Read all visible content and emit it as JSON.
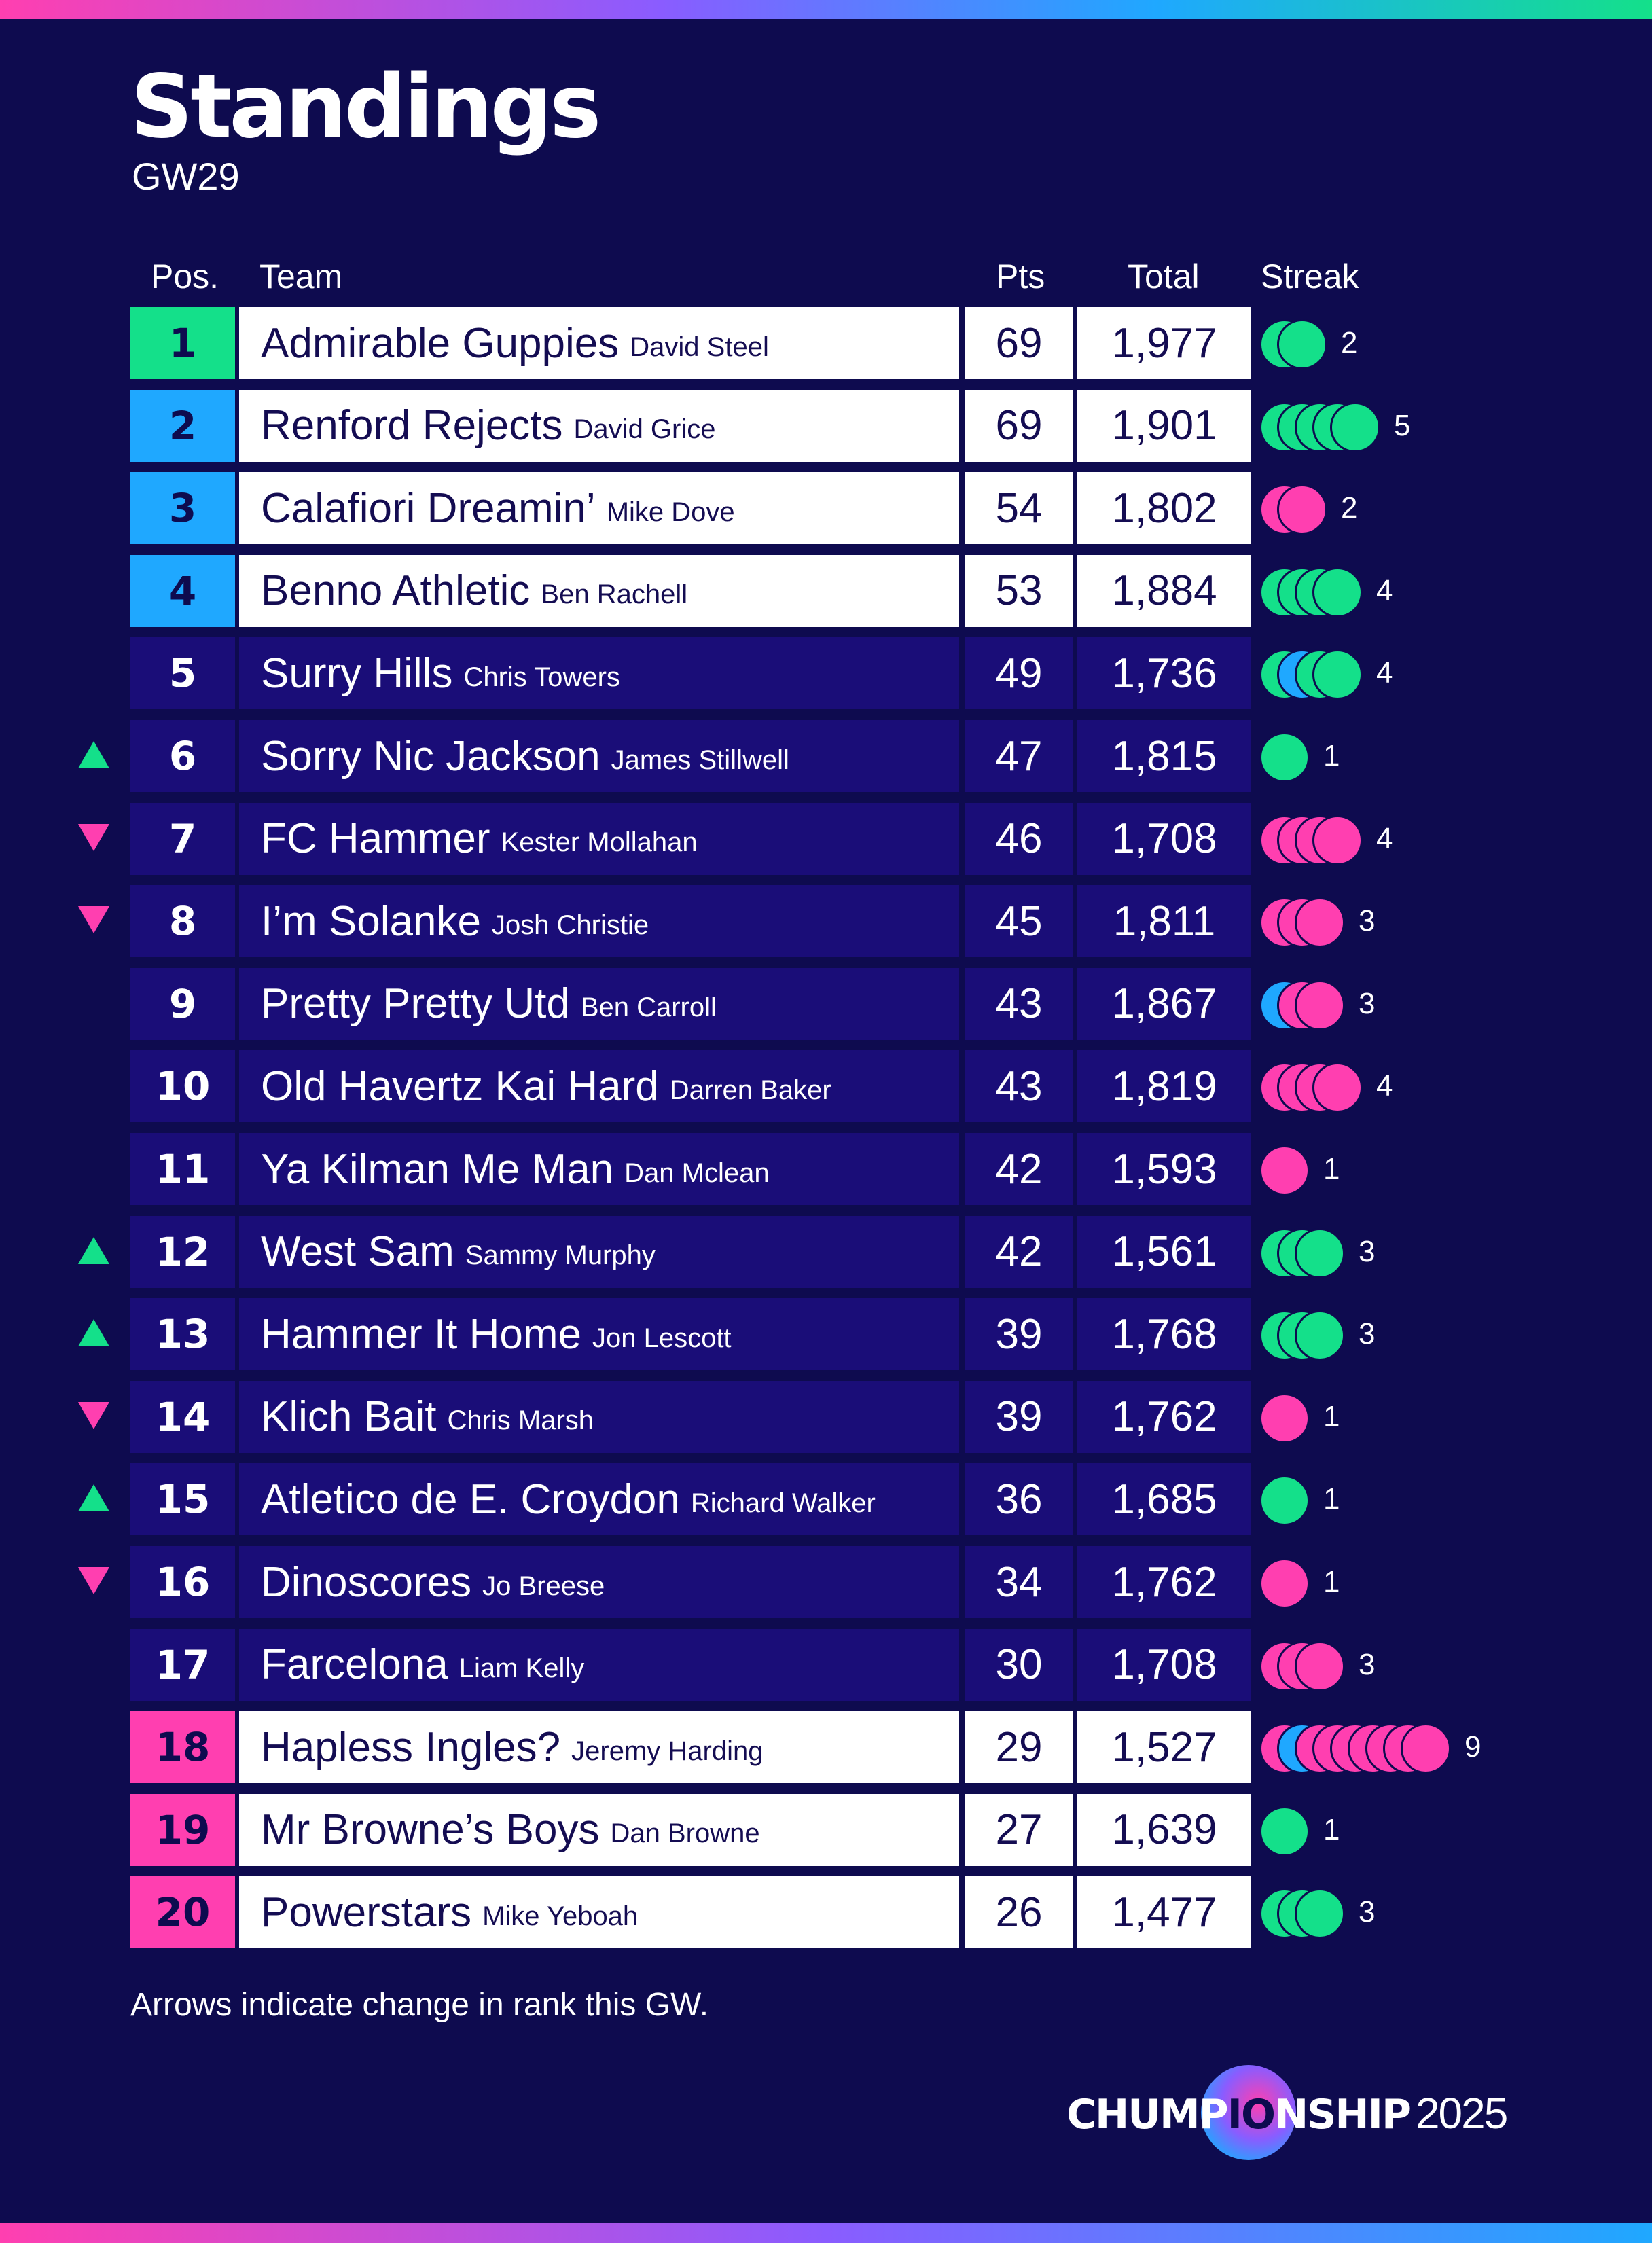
{
  "title": "Standings",
  "subtitle": "GW29",
  "headers": {
    "pos": "Pos.",
    "team": "Team",
    "pts": "Pts",
    "total": "Total",
    "streak": "Streak"
  },
  "colors": {
    "background": "#0e0b4f",
    "row_dark": "#1a0d78",
    "champion": "#14e08a",
    "europe": "#1fa8ff",
    "relegation": "#ff3fb0",
    "win": "#14e08a",
    "loss": "#ff3fb0",
    "draw": "#1fa8ff"
  },
  "rows": [
    {
      "pos": "1",
      "team": "Admirable Guppies",
      "manager": "David Steel",
      "pts": "69",
      "total": "1,977",
      "zone": "champion",
      "arrow": "",
      "streak": [
        "w",
        "w"
      ],
      "streak_count": "2"
    },
    {
      "pos": "2",
      "team": "Renford Rejects",
      "manager": "David Grice",
      "pts": "69",
      "total": "1,901",
      "zone": "europe",
      "arrow": "",
      "streak": [
        "w",
        "w",
        "w",
        "w",
        "w"
      ],
      "streak_count": "5"
    },
    {
      "pos": "3",
      "team": "Calafiori Dreamin’",
      "manager": "Mike Dove",
      "pts": "54",
      "total": "1,802",
      "zone": "europe",
      "arrow": "",
      "streak": [
        "l",
        "l"
      ],
      "streak_count": "2"
    },
    {
      "pos": "4",
      "team": "Benno Athletic",
      "manager": "Ben Rachell",
      "pts": "53",
      "total": "1,884",
      "zone": "europe",
      "arrow": "",
      "streak": [
        "w",
        "w",
        "w",
        "w"
      ],
      "streak_count": "4"
    },
    {
      "pos": "5",
      "team": "Surry Hills",
      "manager": "Chris Towers",
      "pts": "49",
      "total": "1,736",
      "zone": "",
      "arrow": "",
      "streak": [
        "w",
        "d",
        "w",
        "w"
      ],
      "streak_count": "4"
    },
    {
      "pos": "6",
      "team": "Sorry Nic Jackson",
      "manager": "James Stillwell",
      "pts": "47",
      "total": "1,815",
      "zone": "",
      "arrow": "up",
      "streak": [
        "w"
      ],
      "streak_count": "1"
    },
    {
      "pos": "7",
      "team": "FC Hammer",
      "manager": "Kester Mollahan",
      "pts": "46",
      "total": "1,708",
      "zone": "",
      "arrow": "down",
      "streak": [
        "l",
        "l",
        "l",
        "l"
      ],
      "streak_count": "4"
    },
    {
      "pos": "8",
      "team": "I’m Solanke",
      "manager": "Josh Christie",
      "pts": "45",
      "total": "1,811",
      "zone": "",
      "arrow": "down",
      "streak": [
        "l",
        "l",
        "l"
      ],
      "streak_count": "3"
    },
    {
      "pos": "9",
      "team": "Pretty Pretty Utd",
      "manager": "Ben Carroll",
      "pts": "43",
      "total": "1,867",
      "zone": "",
      "arrow": "",
      "streak": [
        "d",
        "l",
        "l"
      ],
      "streak_count": "3"
    },
    {
      "pos": "10",
      "team": "Old Havertz Kai Hard",
      "manager": "Darren Baker",
      "pts": "43",
      "total": "1,819",
      "zone": "",
      "arrow": "",
      "streak": [
        "l",
        "l",
        "l",
        "l"
      ],
      "streak_count": "4"
    },
    {
      "pos": "11",
      "team": "Ya Kilman Me Man",
      "manager": "Dan Mclean",
      "pts": "42",
      "total": "1,593",
      "zone": "",
      "arrow": "",
      "streak": [
        "l"
      ],
      "streak_count": "1"
    },
    {
      "pos": "12",
      "team": "West Sam",
      "manager": "Sammy Murphy",
      "pts": "42",
      "total": "1,561",
      "zone": "",
      "arrow": "up",
      "streak": [
        "w",
        "w",
        "w"
      ],
      "streak_count": "3"
    },
    {
      "pos": "13",
      "team": "Hammer It Home",
      "manager": "Jon Lescott",
      "pts": "39",
      "total": "1,768",
      "zone": "",
      "arrow": "up",
      "streak": [
        "w",
        "w",
        "w"
      ],
      "streak_count": "3"
    },
    {
      "pos": "14",
      "team": "Klich Bait",
      "manager": "Chris Marsh",
      "pts": "39",
      "total": "1,762",
      "zone": "",
      "arrow": "down",
      "streak": [
        "l"
      ],
      "streak_count": "1"
    },
    {
      "pos": "15",
      "team": "Atletico de E. Croydon",
      "manager": "Richard Walker",
      "pts": "36",
      "total": "1,685",
      "zone": "",
      "arrow": "up",
      "streak": [
        "w"
      ],
      "streak_count": "1"
    },
    {
      "pos": "16",
      "team": "Dinoscores",
      "manager": "Jo Breese",
      "pts": "34",
      "total": "1,762",
      "zone": "",
      "arrow": "down",
      "streak": [
        "l"
      ],
      "streak_count": "1"
    },
    {
      "pos": "17",
      "team": "Farcelona",
      "manager": "Liam Kelly",
      "pts": "30",
      "total": "1,708",
      "zone": "",
      "arrow": "",
      "streak": [
        "l",
        "l",
        "l"
      ],
      "streak_count": "3"
    },
    {
      "pos": "18",
      "team": "Hapless Ingles?",
      "manager": "Jeremy Harding",
      "pts": "29",
      "total": "1,527",
      "zone": "relegation",
      "arrow": "",
      "streak": [
        "l",
        "d",
        "l",
        "l",
        "l",
        "l",
        "l",
        "l",
        "l"
      ],
      "streak_count": "9"
    },
    {
      "pos": "19",
      "team": "Mr Browne’s Boys",
      "manager": "Dan Browne",
      "pts": "27",
      "total": "1,639",
      "zone": "relegation",
      "arrow": "",
      "streak": [
        "w"
      ],
      "streak_count": "1"
    },
    {
      "pos": "20",
      "team": "Powerstars",
      "manager": "Mike Yeboah",
      "pts": "26",
      "total": "1,477",
      "zone": "relegation",
      "arrow": "",
      "streak": [
        "w",
        "w",
        "w"
      ],
      "streak_count": "3"
    }
  ],
  "footnote": "Arrows indicate change in rank this GW.",
  "logo": {
    "prefix": "CHUMP",
    "middle": "IO",
    "suffix": "NSHIP",
    "year": "2025"
  }
}
